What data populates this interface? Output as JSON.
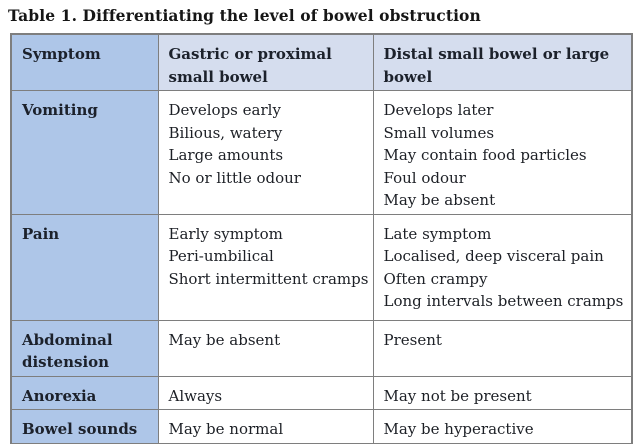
{
  "title": "Table 1. Differentiating the level of bowel obstruction",
  "colors": {
    "row_header_blue": "#aec6e8",
    "column_header_blue": "#d5ddee",
    "border_gray": "#7e7e7e",
    "text": "#1d2026",
    "cell_background": "#ffffff"
  },
  "table": {
    "columns": [
      "Symptom",
      "Gastric or proximal small bowel",
      "Distal small bowel or large bowel"
    ],
    "rows": [
      {
        "symptom": "Vomiting",
        "proximal": [
          "Develops early",
          "Bilious, watery",
          "Large amounts",
          "No or little odour"
        ],
        "distal": [
          "Develops later",
          "Small volumes",
          "May contain food particles",
          "Foul odour",
          "May be absent"
        ]
      },
      {
        "symptom": "Pain",
        "proximal": [
          "Early symptom",
          "Peri-umbilical",
          "Short intermittent cramps"
        ],
        "distal": [
          "Late symptom",
          "Localised, deep visceral pain",
          "Often crampy",
          "Long intervals between cramps"
        ]
      },
      {
        "symptom": "Abdominal distension",
        "proximal": [
          "May be absent"
        ],
        "distal": [
          "Present"
        ]
      },
      {
        "symptom": "Anorexia",
        "proximal": [
          "Always"
        ],
        "distal": [
          "May not be present"
        ]
      },
      {
        "symptom": "Bowel sounds",
        "proximal": [
          "May be normal"
        ],
        "distal": [
          "May be hyperactive"
        ]
      }
    ]
  }
}
